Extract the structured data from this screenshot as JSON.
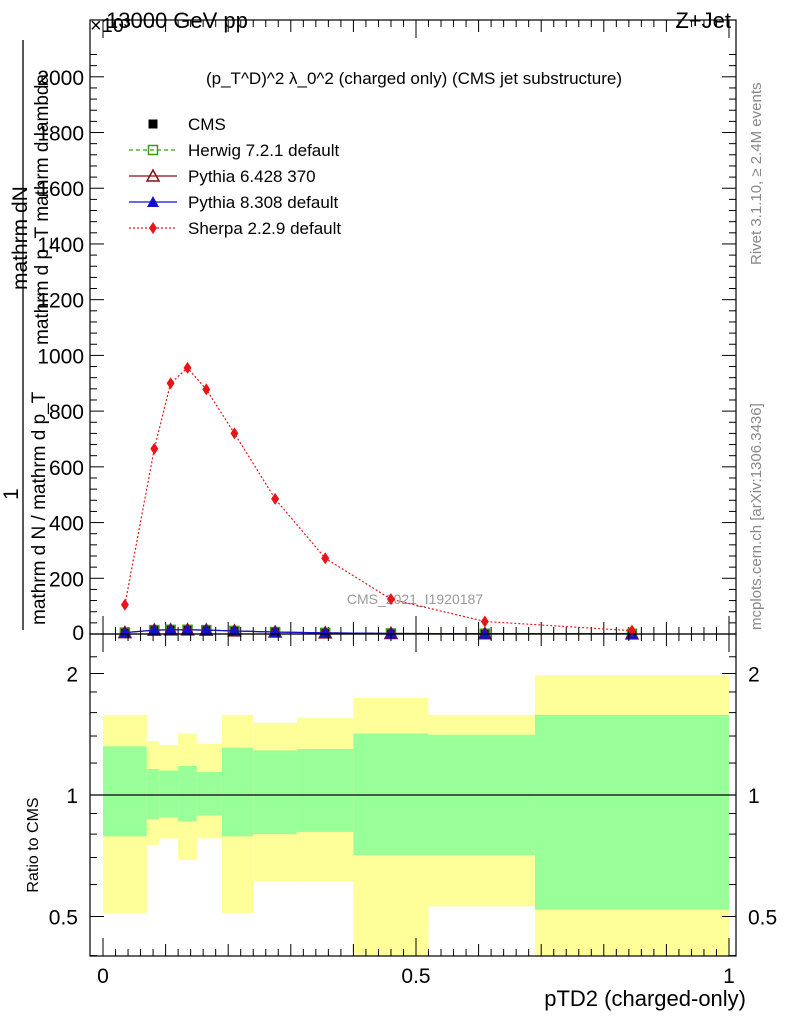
{
  "header": {
    "left": "13000 GeV pp",
    "right": "Z+Jet",
    "exponent": "×10³",
    "plot_title": "(p_T^D)^2 λ_0^2 (charged only) (CMS jet substructure)",
    "watermark": "CMS_2021_I1920187",
    "side_top": "Rivet 3.1.10, ≥ 2.4M events",
    "side_bottom": "mcplots.cern.ch [arXiv:1306.3436]"
  },
  "ylabel_top": {
    "numerator": "mathrm dN",
    "numerator2": "mathrm d p_T mathrm d lambda",
    "one": "1",
    "denominator": "mathrm d N / mathrm d p_T"
  },
  "ratio_ylabel": "Ratio to CMS",
  "xlabel": "pTD2 (charged-only)",
  "legend": [
    {
      "label": "CMS",
      "color": "#000000"
    },
    {
      "label": "Herwig 7.2.1 default",
      "color": "#3a9a14"
    },
    {
      "label": "Pythia 6.428 370",
      "color": "#8b0f14"
    },
    {
      "label": "Pythia 8.308 default",
      "color": "#1212cc"
    },
    {
      "label": "Sherpa 2.2.9 default",
      "color": "#e8141a"
    }
  ],
  "chart_data": [
    {
      "type": "line",
      "title": "(p_T^D)^2 λ_0^2 (charged only) (CMS jet substructure)",
      "xlabel": "pTD2 (charged-only)",
      "ylabel": "1 / (mathrm d N / mathrm d p_T) · mathrm dN / (mathrm d p_T mathrm d lambda)",
      "xlim": [
        -0.02,
        1.0
      ],
      "ylim": [
        0,
        2150
      ],
      "y_scale_note": "×10³",
      "x_ticks": [
        "0",
        "0.5",
        "1"
      ],
      "y_ticks": [
        "200",
        "400",
        "600",
        "800",
        "1000",
        "1200",
        "1400",
        "1600",
        "1800",
        "2000"
      ],
      "x": [
        0.035,
        0.082,
        0.108,
        0.135,
        0.165,
        0.21,
        0.275,
        0.355,
        0.46,
        0.61,
        0.845
      ],
      "series": [
        {
          "name": "CMS",
          "values": [
            5,
            14,
            15,
            15,
            14,
            11,
            7,
            4,
            2,
            1,
            0.5
          ]
        },
        {
          "name": "Herwig 7.2.1 default",
          "values": [
            5,
            14,
            15,
            15,
            14,
            11,
            7,
            4,
            2,
            1,
            0.5
          ]
        },
        {
          "name": "Pythia 6.428 370",
          "values": [
            5,
            14,
            15,
            15,
            14,
            11,
            7,
            4,
            2,
            1,
            0.5
          ]
        },
        {
          "name": "Pythia 8.308 default",
          "values": [
            5,
            14,
            15,
            15,
            14,
            11,
            7,
            4,
            2,
            1,
            0.5
          ]
        },
        {
          "name": "Sherpa 2.2.9 default",
          "values": [
            105,
            665,
            900,
            955,
            878,
            720,
            485,
            272,
            125,
            45,
            12
          ]
        }
      ]
    },
    {
      "type": "area",
      "ylabel": "Ratio to CMS",
      "xlabel": "pTD2 (charged-only)",
      "ylim": [
        0.35,
        2.25
      ],
      "y_ticks": [
        "0.5",
        "1",
        "2"
      ],
      "bins": [
        {
          "lo": 0.0,
          "hi": 0.07,
          "green": [
            0.79,
            1.32
          ],
          "yellow": [
            0.51,
            1.58
          ]
        },
        {
          "lo": 0.07,
          "hi": 0.09,
          "green": [
            0.87,
            1.16
          ],
          "yellow": [
            0.75,
            1.36
          ]
        },
        {
          "lo": 0.09,
          "hi": 0.12,
          "green": [
            0.88,
            1.15
          ],
          "yellow": [
            0.78,
            1.33
          ]
        },
        {
          "lo": 0.12,
          "hi": 0.15,
          "green": [
            0.86,
            1.18
          ],
          "yellow": [
            0.69,
            1.42
          ]
        },
        {
          "lo": 0.15,
          "hi": 0.19,
          "green": [
            0.89,
            1.14
          ],
          "yellow": [
            0.78,
            1.34
          ]
        },
        {
          "lo": 0.19,
          "hi": 0.24,
          "green": [
            0.79,
            1.31
          ],
          "yellow": [
            0.51,
            1.58
          ]
        },
        {
          "lo": 0.24,
          "hi": 0.31,
          "green": [
            0.8,
            1.29
          ],
          "yellow": [
            0.61,
            1.51
          ]
        },
        {
          "lo": 0.31,
          "hi": 0.4,
          "green": [
            0.81,
            1.3
          ],
          "yellow": [
            0.61,
            1.55
          ]
        },
        {
          "lo": 0.4,
          "hi": 0.52,
          "green": [
            0.71,
            1.42
          ],
          "yellow": [
            0.31,
            1.74
          ]
        },
        {
          "lo": 0.52,
          "hi": 0.69,
          "green": [
            0.71,
            1.41
          ],
          "yellow": [
            0.53,
            1.58
          ]
        },
        {
          "lo": 0.69,
          "hi": 1.0,
          "green": [
            0.52,
            1.58
          ],
          "yellow": [
            0.31,
            1.98
          ]
        }
      ],
      "reference_line": 1
    }
  ]
}
